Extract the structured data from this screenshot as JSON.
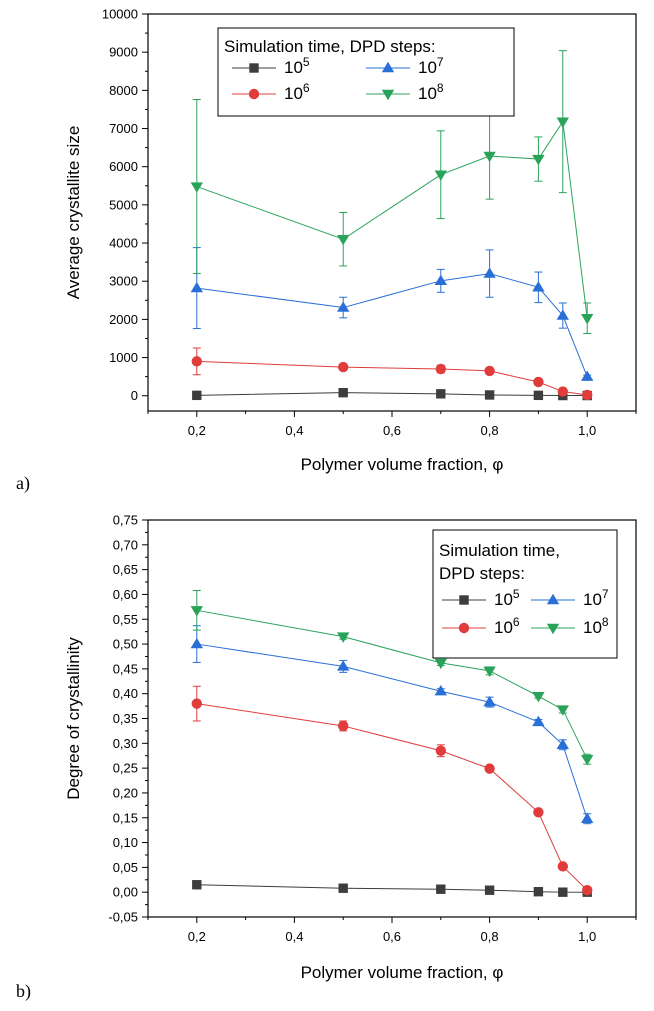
{
  "chart_data": [
    {
      "type": "line",
      "panel_label": "a)",
      "xlabel": "Polymer volume fraction,  φ",
      "ylabel": "Average crystallite size",
      "xlim": [
        0.1,
        1.1
      ],
      "ylim": [
        -400,
        10000
      ],
      "x_ticks": [
        "0,2",
        "0,4",
        "0,6",
        "0,8",
        "1,0"
      ],
      "x_tick_values": [
        0.2,
        0.4,
        0.6,
        0.8,
        1.0
      ],
      "y_ticks": [
        "0",
        "1000",
        "2000",
        "3000",
        "4000",
        "5000",
        "6000",
        "7000",
        "8000",
        "9000",
        "10000"
      ],
      "y_tick_values": [
        0,
        1000,
        2000,
        3000,
        4000,
        5000,
        6000,
        7000,
        8000,
        9000,
        10000
      ],
      "legend": {
        "title": "Simulation time, DPD steps:",
        "title_lines": [
          "Simulation time, DPD steps:"
        ],
        "placement": "top-left"
      },
      "x": [
        0.2,
        0.5,
        0.7,
        0.8,
        0.9,
        0.95,
        1.0
      ],
      "series": [
        {
          "name_base": "10",
          "name_exp": "5",
          "color": "#3d3d3d",
          "marker": "square",
          "values": [
            10,
            80,
            50,
            20,
            10,
            5,
            5
          ],
          "err": [
            0,
            0,
            0,
            0,
            0,
            0,
            0
          ]
        },
        {
          "name_base": "10",
          "name_exp": "6",
          "color": "#e03c3c",
          "marker": "circle",
          "values": [
            900,
            750,
            700,
            650,
            360,
            110,
            20
          ],
          "err": [
            350,
            60,
            100,
            60,
            40,
            40,
            10
          ]
        },
        {
          "name_base": "10",
          "name_exp": "7",
          "color": "#2a6fd6",
          "marker": "triangle-up",
          "values": [
            2820,
            2310,
            3010,
            3200,
            2840,
            2100,
            500
          ],
          "err": [
            1060,
            270,
            300,
            620,
            400,
            330,
            40
          ]
        },
        {
          "name_base": "10",
          "name_exp": "8",
          "color": "#2aa35a",
          "marker": "triangle-down",
          "values": [
            5480,
            4100,
            5790,
            6280,
            6200,
            7180,
            2030
          ],
          "err": [
            2280,
            700,
            1150,
            1130,
            580,
            1860,
            400
          ]
        }
      ]
    },
    {
      "type": "line",
      "panel_label": "b)",
      "xlabel": "Polymer volume fraction,  φ",
      "ylabel": "Degree of crystallinity",
      "xlim": [
        0.1,
        1.1
      ],
      "ylim": [
        -0.05,
        0.75
      ],
      "x_ticks": [
        "0,2",
        "0,4",
        "0,6",
        "0,8",
        "1,0"
      ],
      "x_tick_values": [
        0.2,
        0.4,
        0.6,
        0.8,
        1.0
      ],
      "y_ticks": [
        "-0,05",
        "0,00",
        "0,05",
        "0,10",
        "0,15",
        "0,20",
        "0,25",
        "0,30",
        "0,35",
        "0,40",
        "0,45",
        "0,50",
        "0,55",
        "0,60",
        "0,65",
        "0,70",
        "0,75"
      ],
      "y_tick_values": [
        -0.05,
        0.0,
        0.05,
        0.1,
        0.15,
        0.2,
        0.25,
        0.3,
        0.35,
        0.4,
        0.45,
        0.5,
        0.55,
        0.6,
        0.65,
        0.7,
        0.75
      ],
      "legend": {
        "title": "Simulation time, DPD steps:",
        "title_lines": [
          "Simulation time,",
          "DPD steps:"
        ],
        "placement": "top-right"
      },
      "x": [
        0.2,
        0.5,
        0.7,
        0.8,
        0.9,
        0.95,
        1.0
      ],
      "series": [
        {
          "name_base": "10",
          "name_exp": "5",
          "color": "#3d3d3d",
          "marker": "square",
          "values": [
            0.015,
            0.008,
            0.006,
            0.004,
            0.001,
            0.0,
            0.0
          ],
          "err": [
            0,
            0,
            0,
            0,
            0,
            0,
            0
          ]
        },
        {
          "name_base": "10",
          "name_exp": "6",
          "color": "#e03c3c",
          "marker": "circle",
          "values": [
            0.38,
            0.335,
            0.285,
            0.249,
            0.161,
            0.052,
            0.004
          ],
          "err": [
            0.035,
            0.01,
            0.012,
            0.0,
            0.0,
            0.0,
            0.0
          ]
        },
        {
          "name_base": "10",
          "name_exp": "7",
          "color": "#2a6fd6",
          "marker": "triangle-up",
          "values": [
            0.5,
            0.455,
            0.405,
            0.383,
            0.343,
            0.297,
            0.148
          ],
          "err": [
            0.037,
            0.012,
            0.005,
            0.01,
            0.005,
            0.01,
            0.01
          ]
        },
        {
          "name_base": "10",
          "name_exp": "8",
          "color": "#2aa35a",
          "marker": "triangle-down",
          "values": [
            0.568,
            0.515,
            0.462,
            0.446,
            0.395,
            0.368,
            0.268
          ],
          "err": [
            0.04,
            0.005,
            0.005,
            0.008,
            0.004,
            0.007,
            0.01
          ]
        }
      ]
    }
  ]
}
